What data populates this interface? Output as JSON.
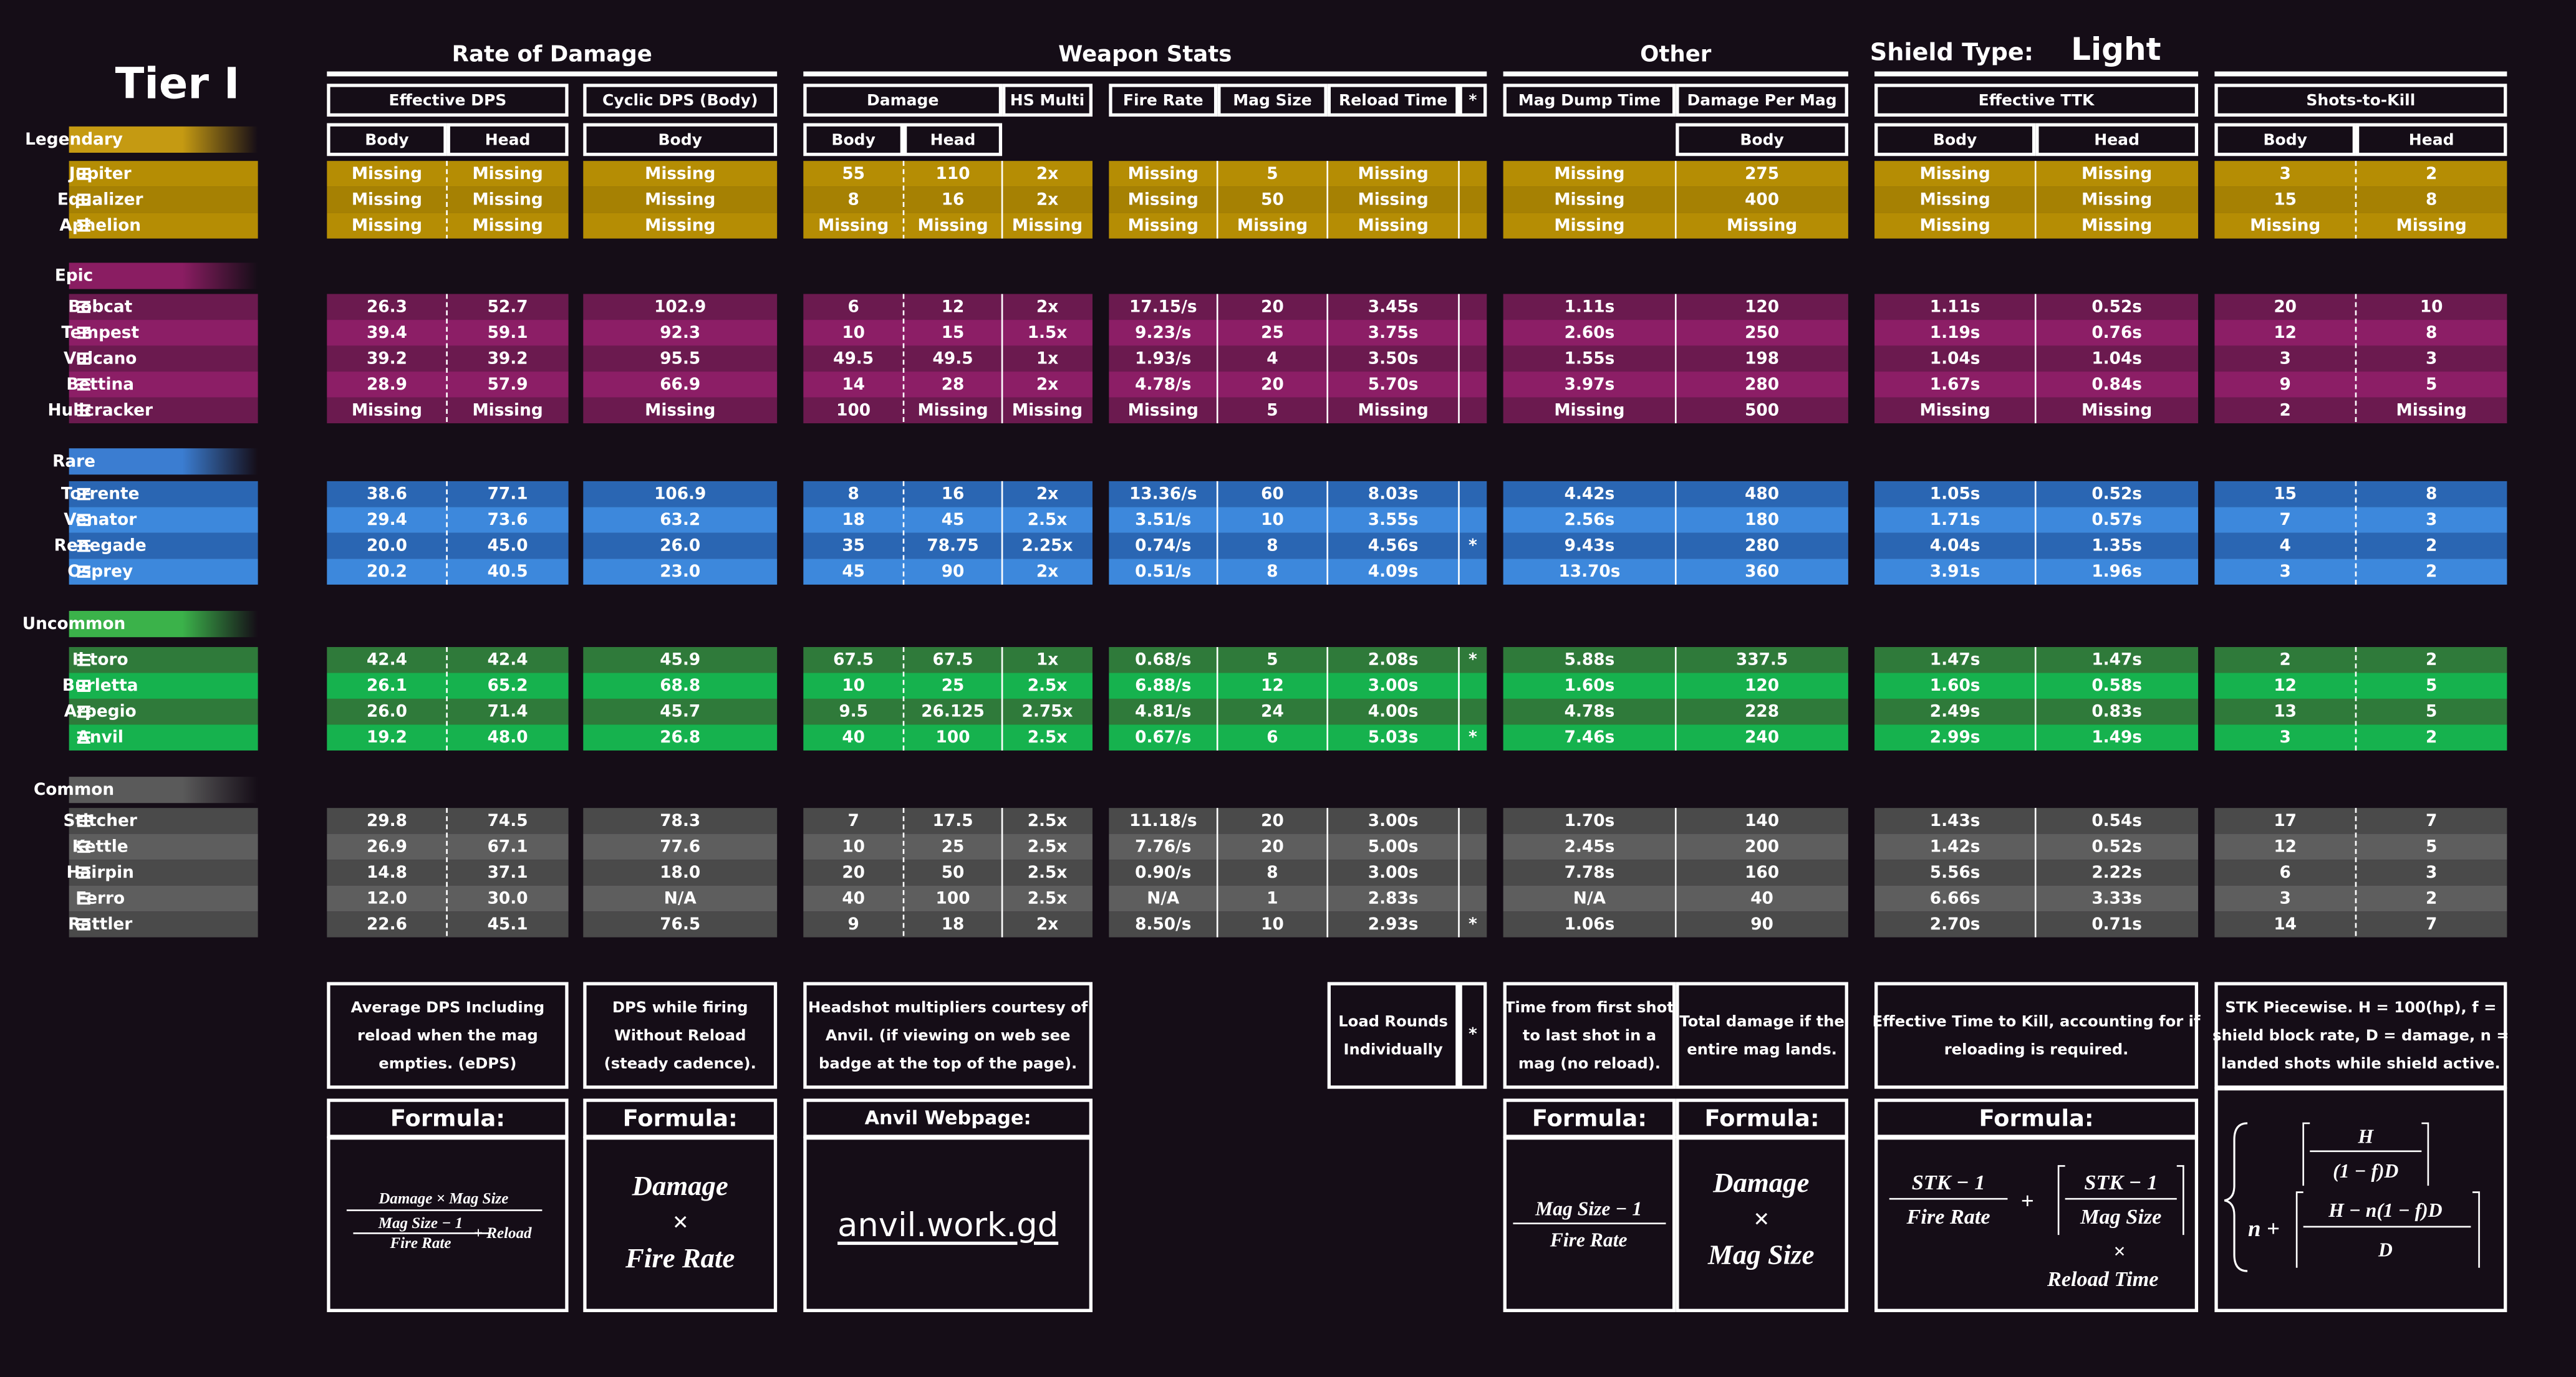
{
  "title": "Tier I",
  "group_headers": [
    "Rate of Damage",
    "Weapon Stats",
    "Other"
  ],
  "shield": {
    "label": "Shield Type:",
    "value": "Light"
  },
  "column_headers": [
    "Effective DPS",
    "Cyclic DPS (Body)",
    "Damage",
    "HS Multi",
    "Fire Rate",
    "Mag Size",
    "Reload Time",
    "*",
    "Mag Dump Time",
    "Damage Per Mag",
    "Effective TTK",
    "Shots-to-Kill"
  ],
  "sub_headers": [
    "Body",
    "Head",
    "Body",
    "Body",
    "Head",
    "Body",
    "Body",
    "Head",
    "Body",
    "Head"
  ],
  "rarities": [
    {
      "name": "Legendary",
      "color": "#c59a12",
      "row_colors": [
        "#b58d04",
        "#a68103"
      ],
      "weapons": [
        [
          "Jupiter",
          "Missing",
          "Missing",
          "Missing",
          "55",
          "110",
          "2x",
          "Missing",
          "5",
          "Missing",
          null,
          "Missing",
          "275",
          "Missing",
          "Missing",
          "3",
          "2"
        ],
        [
          "Equalizer",
          "Missing",
          "Missing",
          "Missing",
          "8",
          "16",
          "2x",
          "Missing",
          "50",
          "Missing",
          null,
          "Missing",
          "400",
          "Missing",
          "Missing",
          "15",
          "8"
        ],
        [
          "Aphelion",
          "Missing",
          "Missing",
          "Missing",
          "Missing",
          "Missing",
          "Missing",
          "Missing",
          "Missing",
          "Missing",
          null,
          "Missing",
          "Missing",
          "Missing",
          "Missing",
          "Missing",
          "Missing"
        ]
      ]
    },
    {
      "name": "Epic",
      "color": "#8a1d62",
      "row_colors": [
        "#6b1a4f",
        "#8c1e66"
      ],
      "weapons": [
        [
          "Bobcat",
          "26.3",
          "52.7",
          "102.9",
          "6",
          "12",
          "2x",
          "17.15/s",
          "20",
          "3.45s",
          null,
          "1.11s",
          "120",
          "1.11s",
          "0.52s",
          "20",
          "10"
        ],
        [
          "Tempest",
          "39.4",
          "59.1",
          "92.3",
          "10",
          "15",
          "1.5x",
          "9.23/s",
          "25",
          "3.75s",
          null,
          "2.60s",
          "250",
          "1.19s",
          "0.76s",
          "12",
          "8"
        ],
        [
          "Vulcano",
          "39.2",
          "39.2",
          "95.5",
          "49.5",
          "49.5",
          "1x",
          "1.93/s",
          "4",
          "3.50s",
          null,
          "1.55s",
          "198",
          "1.04s",
          "1.04s",
          "3",
          "3"
        ],
        [
          "Bettina",
          "28.9",
          "57.9",
          "66.9",
          "14",
          "28",
          "2x",
          "4.78/s",
          "20",
          "5.70s",
          null,
          "3.97s",
          "280",
          "1.67s",
          "0.84s",
          "9",
          "5"
        ],
        [
          "Hullcracker",
          "Missing",
          "Missing",
          "Missing",
          "100",
          "Missing",
          "Missing",
          "Missing",
          "5",
          "Missing",
          null,
          "Missing",
          "500",
          "Missing",
          "Missing",
          "2",
          "Missing"
        ]
      ]
    },
    {
      "name": "Rare",
      "color": "#3b7dd1",
      "row_colors": [
        "#2a66b3",
        "#3d88dc"
      ],
      "weapons": [
        [
          "Torrente",
          "38.6",
          "77.1",
          "106.9",
          "8",
          "16",
          "2x",
          "13.36/s",
          "60",
          "8.03s",
          null,
          "4.42s",
          "480",
          "1.05s",
          "0.52s",
          "15",
          "8"
        ],
        [
          "Venator",
          "29.4",
          "73.6",
          "63.2",
          "18",
          "45",
          "2.5x",
          "3.51/s",
          "10",
          "3.55s",
          null,
          "2.56s",
          "180",
          "1.71s",
          "0.57s",
          "7",
          "3"
        ],
        [
          "Renegade",
          "20.0",
          "45.0",
          "26.0",
          "35",
          "78.75",
          "2.25x",
          "0.74/s",
          "8",
          "4.56s",
          "*",
          "9.43s",
          "280",
          "4.04s",
          "1.35s",
          "4",
          "2"
        ],
        [
          "Osprey",
          "20.2",
          "40.5",
          "23.0",
          "45",
          "90",
          "2x",
          "0.51/s",
          "8",
          "4.09s",
          null,
          "13.70s",
          "360",
          "3.91s",
          "1.96s",
          "3",
          "2"
        ]
      ]
    },
    {
      "name": "Uncommon",
      "color": "#3bb24a",
      "row_colors": [
        "#2f7a3a",
        "#16b24e"
      ],
      "weapons": [
        [
          "Il toro",
          "42.4",
          "42.4",
          "45.9",
          "67.5",
          "67.5",
          "1x",
          "0.68/s",
          "5",
          "2.08s",
          "*",
          "5.88s",
          "337.5",
          "1.47s",
          "1.47s",
          "2",
          "2"
        ],
        [
          "Burletta",
          "26.1",
          "65.2",
          "68.8",
          "10",
          "25",
          "2.5x",
          "6.88/s",
          "12",
          "3.00s",
          null,
          "1.60s",
          "120",
          "1.60s",
          "0.58s",
          "12",
          "5"
        ],
        [
          "Arpegio",
          "26.0",
          "71.4",
          "45.7",
          "9.5",
          "26.125",
          "2.75x",
          "4.81/s",
          "24",
          "4.00s",
          null,
          "4.78s",
          "228",
          "2.49s",
          "0.83s",
          "13",
          "5"
        ],
        [
          "Anvil",
          "19.2",
          "48.0",
          "26.8",
          "40",
          "100",
          "2.5x",
          "0.67/s",
          "6",
          "5.03s",
          "*",
          "7.46s",
          "240",
          "2.99s",
          "1.49s",
          "3",
          "2"
        ]
      ]
    },
    {
      "name": "Common",
      "color": "#5a5a5a",
      "row_colors": [
        "#4a4a4a",
        "#5e5e5e"
      ],
      "weapons": [
        [
          "Stitcher",
          "29.8",
          "74.5",
          "78.3",
          "7",
          "17.5",
          "2.5x",
          "11.18/s",
          "20",
          "3.00s",
          null,
          "1.70s",
          "140",
          "1.43s",
          "0.54s",
          "17",
          "7"
        ],
        [
          "Kettle",
          "26.9",
          "67.1",
          "77.6",
          "10",
          "25",
          "2.5x",
          "7.76/s",
          "20",
          "5.00s",
          null,
          "2.45s",
          "200",
          "1.42s",
          "0.52s",
          "12",
          "5"
        ],
        [
          "Hairpin",
          "14.8",
          "37.1",
          "18.0",
          "20",
          "50",
          "2.5x",
          "0.90/s",
          "8",
          "3.00s",
          null,
          "7.78s",
          "160",
          "5.56s",
          "2.22s",
          "6",
          "3"
        ],
        [
          "Ferro",
          "12.0",
          "30.0",
          "N/A",
          "40",
          "100",
          "2.5x",
          "N/A",
          "1",
          "2.83s",
          null,
          "N/A",
          "40",
          "6.66s",
          "3.33s",
          "3",
          "2"
        ],
        [
          "Rattler",
          "22.6",
          "45.1",
          "76.5",
          "9",
          "18",
          "2x",
          "8.50/s",
          "10",
          "2.93s",
          "*",
          "1.06s",
          "90",
          "2.70s",
          "0.71s",
          "14",
          "7"
        ]
      ]
    }
  ],
  "notes": [
    [
      "Average DPS Including",
      "reload  when the mag",
      "empties. (eDPS)"
    ],
    [
      "DPS while firing",
      "Without Reload",
      "(steady cadence)."
    ],
    [
      "Headshot multipliers courtesy of",
      "Anvil. (if viewing on web see",
      "badge at the top of the page)."
    ],
    [
      "Load Rounds",
      "Individually"
    ],
    [
      "Time from first shot",
      "to last shot  in a",
      "mag (no reload)."
    ],
    [
      "Total damage if the",
      "entire mag lands."
    ],
    [
      "Effective Time to Kill, accounting for if",
      "reloading is required."
    ],
    [
      "STK Piecewise. H = 100(hp), f =",
      "shield block rate, D = damage, n =",
      "landed shots while shield active."
    ]
  ],
  "load_star": "*",
  "formula_headers": [
    "Formula:",
    "Formula:",
    "Anvil Webpage:",
    "Formula:",
    "Formula:",
    "Formula:"
  ],
  "link": "anvil.work.gd",
  "formulas": {
    "edps": {
      "numerator": "Damage × Mag Size",
      "denominator": [
        "Mag Size − 1",
        "Fire Rate"
      ],
      "tail": "+ Reload"
    },
    "cyclic": [
      "Damage",
      "×",
      "Fire Rate"
    ],
    "mag_dump": [
      "Mag Size − 1",
      "Fire Rate"
    ],
    "damage_per_mag": [
      "Damage",
      "×",
      "Mag Size"
    ],
    "ttk": {
      "left": [
        "STK − 1",
        "Fire Rate"
      ],
      "plus": "+",
      "right": [
        "STK − 1",
        "Mag Size"
      ],
      "times": "×",
      "tail": "Reload Time"
    },
    "stk": {
      "first": [
        "H",
        "(1 − f)D"
      ],
      "second_prefix": "n +",
      "second": [
        "H − n(1 − f)D",
        "D"
      ]
    }
  }
}
